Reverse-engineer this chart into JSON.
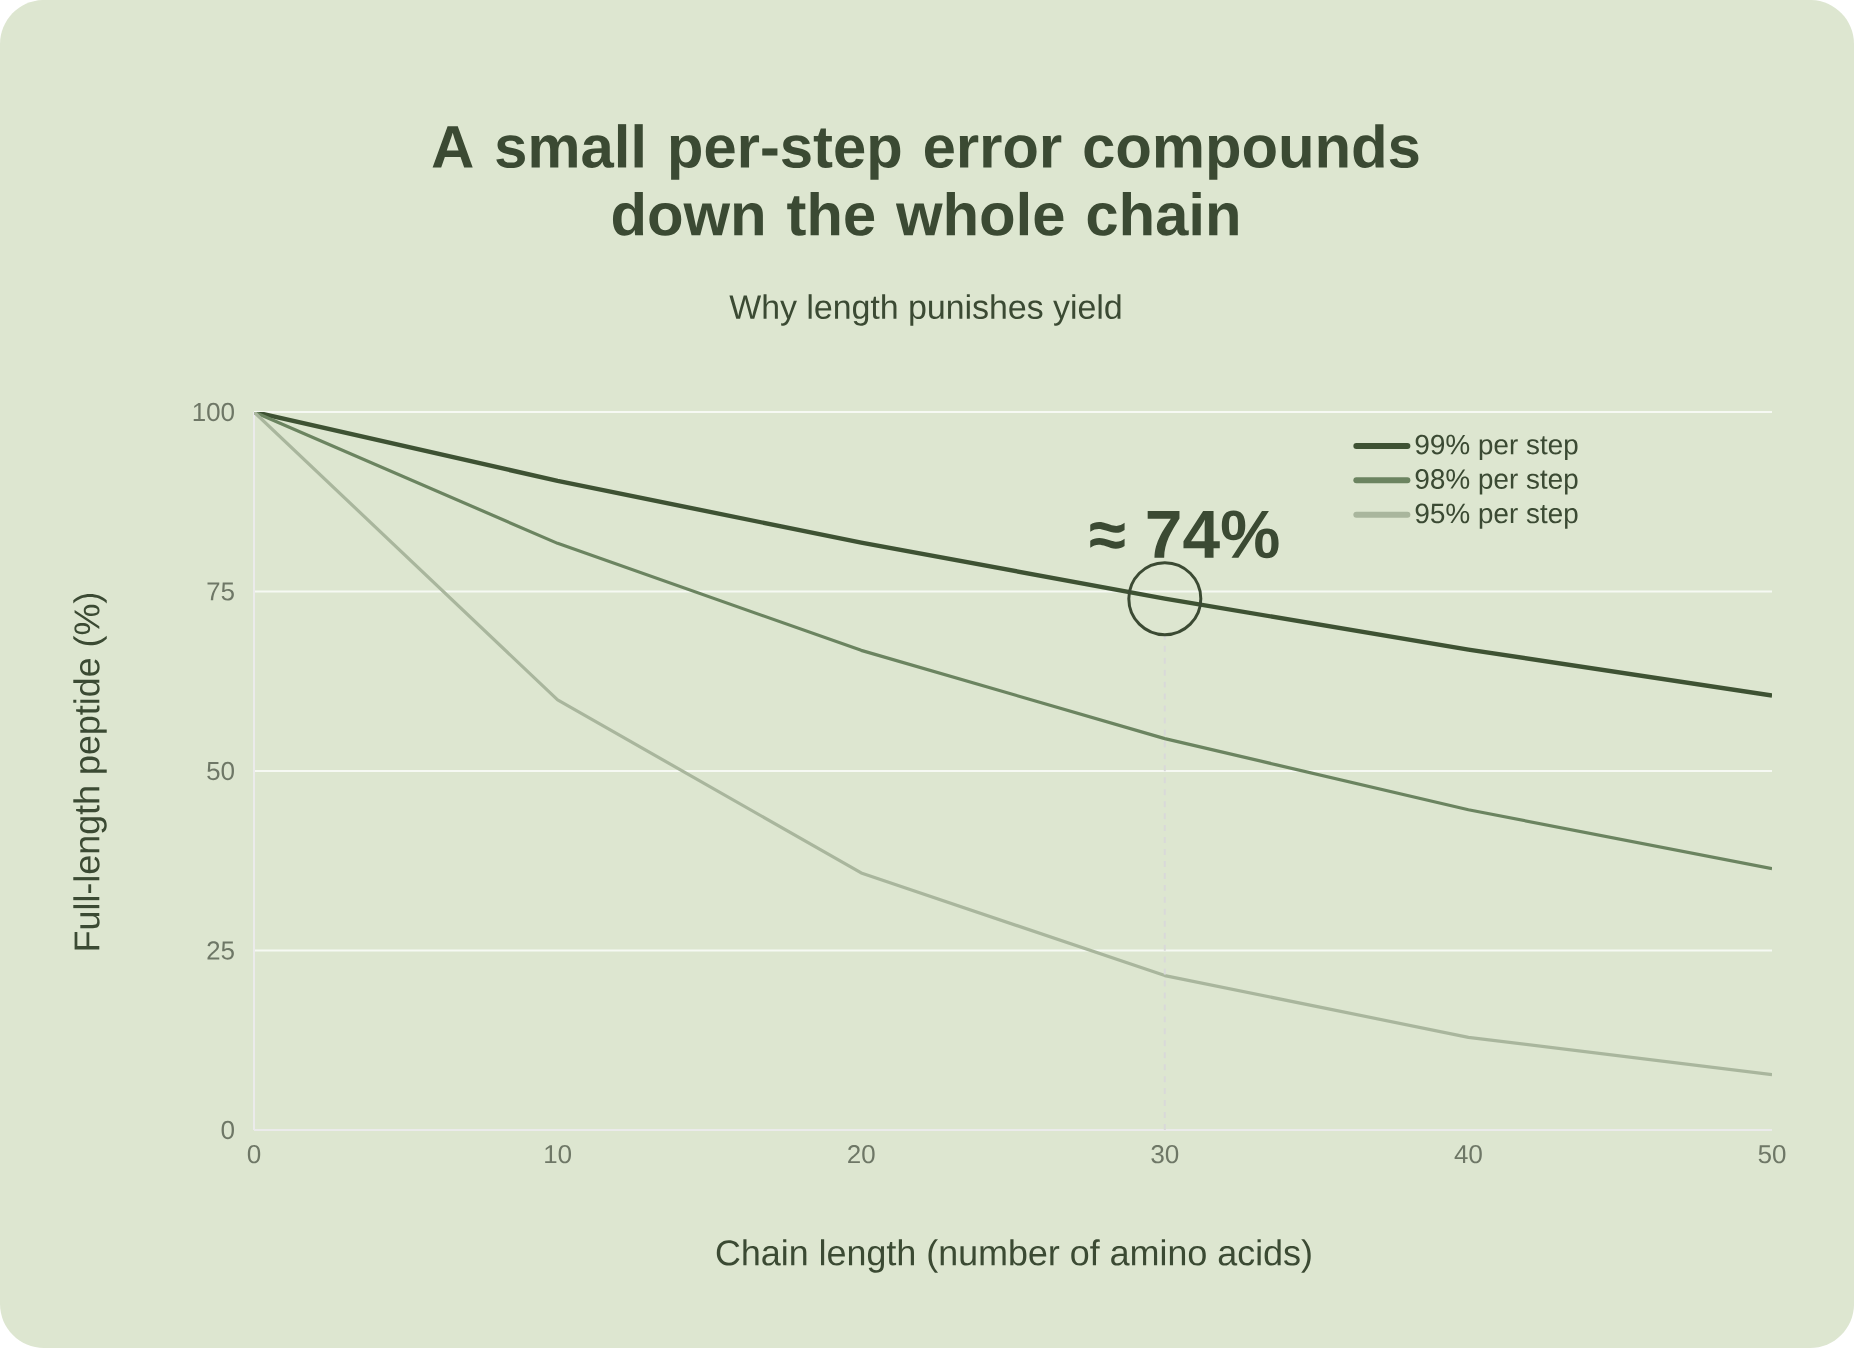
{
  "chart_data": {
    "type": "line",
    "title": "A small per-step error compounds down the whole chain",
    "subtitle": "Why length punishes yield",
    "xlabel": "Chain length (number of amino acids)",
    "ylabel": "Full-length peptide (%)",
    "x": [
      0,
      10,
      20,
      30,
      40,
      50
    ],
    "series": [
      {
        "name": "99% per step",
        "color": "#3e5233",
        "values": [
          100,
          90.4,
          81.8,
          74.0,
          66.9,
          60.5
        ]
      },
      {
        "name": "98% per step",
        "color": "#6b8460",
        "values": [
          100,
          81.7,
          66.8,
          54.5,
          44.6,
          36.4
        ]
      },
      {
        "name": "95% per step",
        "color": "#a9b69d",
        "values": [
          100,
          59.9,
          35.8,
          21.5,
          12.9,
          7.7
        ]
      }
    ],
    "xlim": [
      0,
      50
    ],
    "ylim": [
      0,
      100
    ],
    "xticks": [
      0,
      10,
      20,
      30,
      40,
      50
    ],
    "yticks": [
      0,
      25,
      50,
      75,
      100
    ],
    "grid": "y",
    "legend": "top right",
    "marker": "none",
    "line_style": "solid",
    "annotations": [
      {
        "text": "≈ 74%",
        "x": 30,
        "y": 74
      }
    ]
  }
}
